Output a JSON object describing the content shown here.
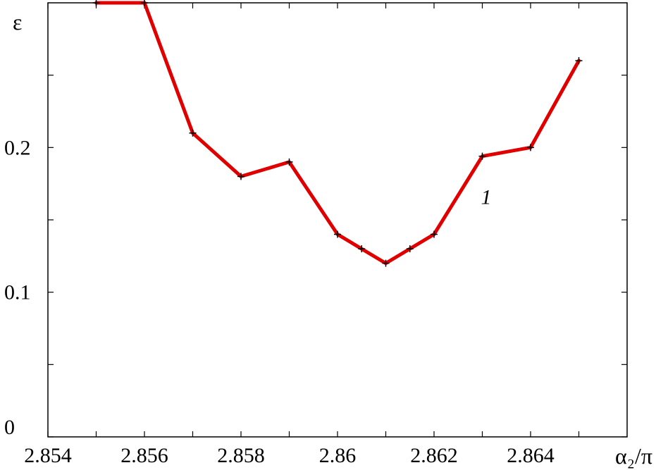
{
  "chart_data": {
    "type": "line",
    "title": "",
    "xlabel": "α₂/π",
    "ylabel": "ε",
    "xlim": [
      2.854,
      2.866
    ],
    "ylim": [
      0,
      0.3
    ],
    "grid": false,
    "x_ticks": [
      2.854,
      2.855,
      2.856,
      2.857,
      2.858,
      2.859,
      2.86,
      2.861,
      2.862,
      2.863,
      2.864,
      2.865
    ],
    "x_tick_labels": [
      "2.854",
      "",
      "2.856",
      "",
      "2.858",
      "",
      "2.86",
      "",
      "2.862",
      "",
      "2.864",
      ""
    ],
    "y_ticks": [
      0,
      0.05,
      0.1,
      0.15,
      0.2,
      0.25
    ],
    "y_tick_labels": [
      "0",
      "",
      "0.1",
      "",
      "0.2",
      ""
    ],
    "series": [
      {
        "name": "",
        "color": "#e00000",
        "x": [
          2.855,
          2.856,
          2.857,
          2.858,
          2.859,
          2.86,
          2.8605,
          2.861,
          2.8615,
          2.862,
          2.863,
          2.864,
          2.865
        ],
        "y": [
          0.3,
          0.3,
          0.21,
          0.18,
          0.19,
          0.14,
          0.13,
          0.12,
          0.13,
          0.14,
          0.194,
          0.2,
          0.26
        ]
      }
    ],
    "annotations": [
      {
        "text": "1",
        "x": 2.863,
        "y": 0.155
      }
    ]
  }
}
